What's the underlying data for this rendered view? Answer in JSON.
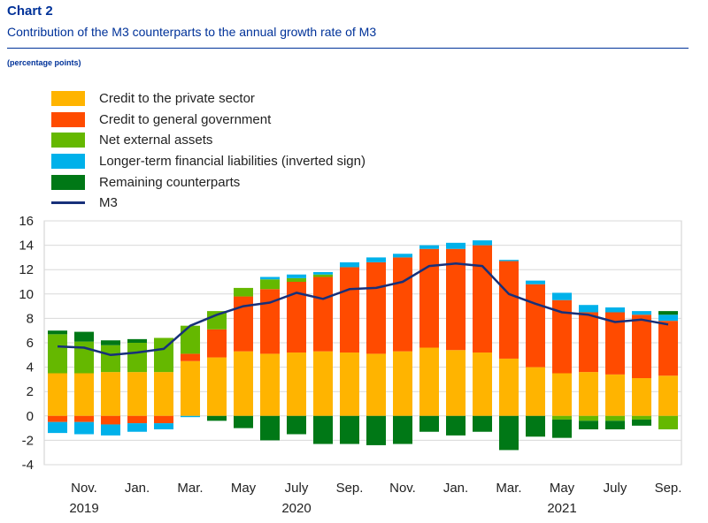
{
  "header": {
    "chart_number": "Chart 2",
    "title": "Contribution of the M3 counterparts to the annual growth rate of M3",
    "units": "(percentage points)"
  },
  "chart_data": {
    "type": "bar",
    "stacked": true,
    "ylim": [
      -4,
      16
    ],
    "yticks": [
      "16",
      "14",
      "12",
      "10",
      "8",
      "6",
      "4",
      "2",
      "0",
      "-2",
      "-4"
    ],
    "grid": true,
    "legend_position": "top-left",
    "xtick_labels": [
      {
        "index": 1,
        "month": "Nov.",
        "year": "2019"
      },
      {
        "index": 3,
        "month": "Jan.",
        "year": ""
      },
      {
        "index": 5,
        "month": "Mar.",
        "year": ""
      },
      {
        "index": 7,
        "month": "May",
        "year": ""
      },
      {
        "index": 9,
        "month": "July",
        "year": "2020"
      },
      {
        "index": 11,
        "month": "Sep.",
        "year": ""
      },
      {
        "index": 13,
        "month": "Nov.",
        "year": ""
      },
      {
        "index": 15,
        "month": "Jan.",
        "year": ""
      },
      {
        "index": 17,
        "month": "Mar.",
        "year": ""
      },
      {
        "index": 19,
        "month": "May",
        "year": "2021"
      },
      {
        "index": 21,
        "month": "July",
        "year": ""
      },
      {
        "index": 23,
        "month": "Sep.",
        "year": ""
      }
    ],
    "series": [
      {
        "name": "Credit to the private sector",
        "color": "#ffb400",
        "values": [
          3.5,
          3.5,
          3.6,
          3.6,
          3.6,
          4.5,
          4.8,
          5.3,
          5.1,
          5.2,
          5.3,
          5.2,
          5.1,
          5.3,
          5.6,
          5.4,
          5.2,
          4.7,
          4.0,
          3.5,
          3.6,
          3.4,
          3.1,
          3.3
        ]
      },
      {
        "name": "Credit to general government",
        "color": "#ff4b00",
        "values": [
          -0.5,
          -0.5,
          -0.7,
          -0.6,
          -0.6,
          0.6,
          2.3,
          4.5,
          5.3,
          5.8,
          6.1,
          7.0,
          7.5,
          7.7,
          8.1,
          8.3,
          8.8,
          8.0,
          6.8,
          6.0,
          4.9,
          5.1,
          5.2,
          4.5
        ]
      },
      {
        "name": "Net external assets",
        "color": "#65b800",
        "values": [
          3.2,
          2.6,
          2.2,
          2.4,
          2.8,
          2.3,
          1.5,
          0.7,
          0.8,
          0.3,
          0.2,
          0,
          0,
          0,
          0,
          0,
          0,
          0,
          0,
          -0.3,
          -0.4,
          -0.4,
          -0.3,
          -1.1
        ]
      },
      {
        "name": "Longer-term financial liabilities (inverted sign)",
        "color": "#00b1ea",
        "values": [
          -0.9,
          -1.0,
          -0.9,
          -0.7,
          -0.5,
          -0.1,
          0,
          0,
          0.2,
          0.3,
          0.2,
          0.4,
          0.4,
          0.3,
          0.3,
          0.5,
          0.4,
          0.1,
          0.3,
          0.6,
          0.6,
          0.4,
          0.3,
          0.5
        ]
      },
      {
        "name": "Remaining counterparts",
        "color": "#007816",
        "values": [
          0.3,
          0.8,
          0.4,
          0.3,
          0,
          0,
          -0.4,
          -1.0,
          -2.0,
          -1.5,
          -2.3,
          -2.3,
          -2.4,
          -2.3,
          -1.3,
          -1.6,
          -1.3,
          -2.8,
          -1.7,
          -1.5,
          -0.7,
          -0.7,
          -0.5,
          0.3
        ]
      }
    ],
    "line": {
      "name": "M3",
      "color": "#17307a",
      "values": [
        5.7,
        5.6,
        5.0,
        5.2,
        5.5,
        7.4,
        8.3,
        9.0,
        9.3,
        10.1,
        9.6,
        10.4,
        10.5,
        11.0,
        12.3,
        12.5,
        12.3,
        10.0,
        9.2,
        8.5,
        8.3,
        7.7,
        7.9,
        7.5
      ]
    }
  }
}
